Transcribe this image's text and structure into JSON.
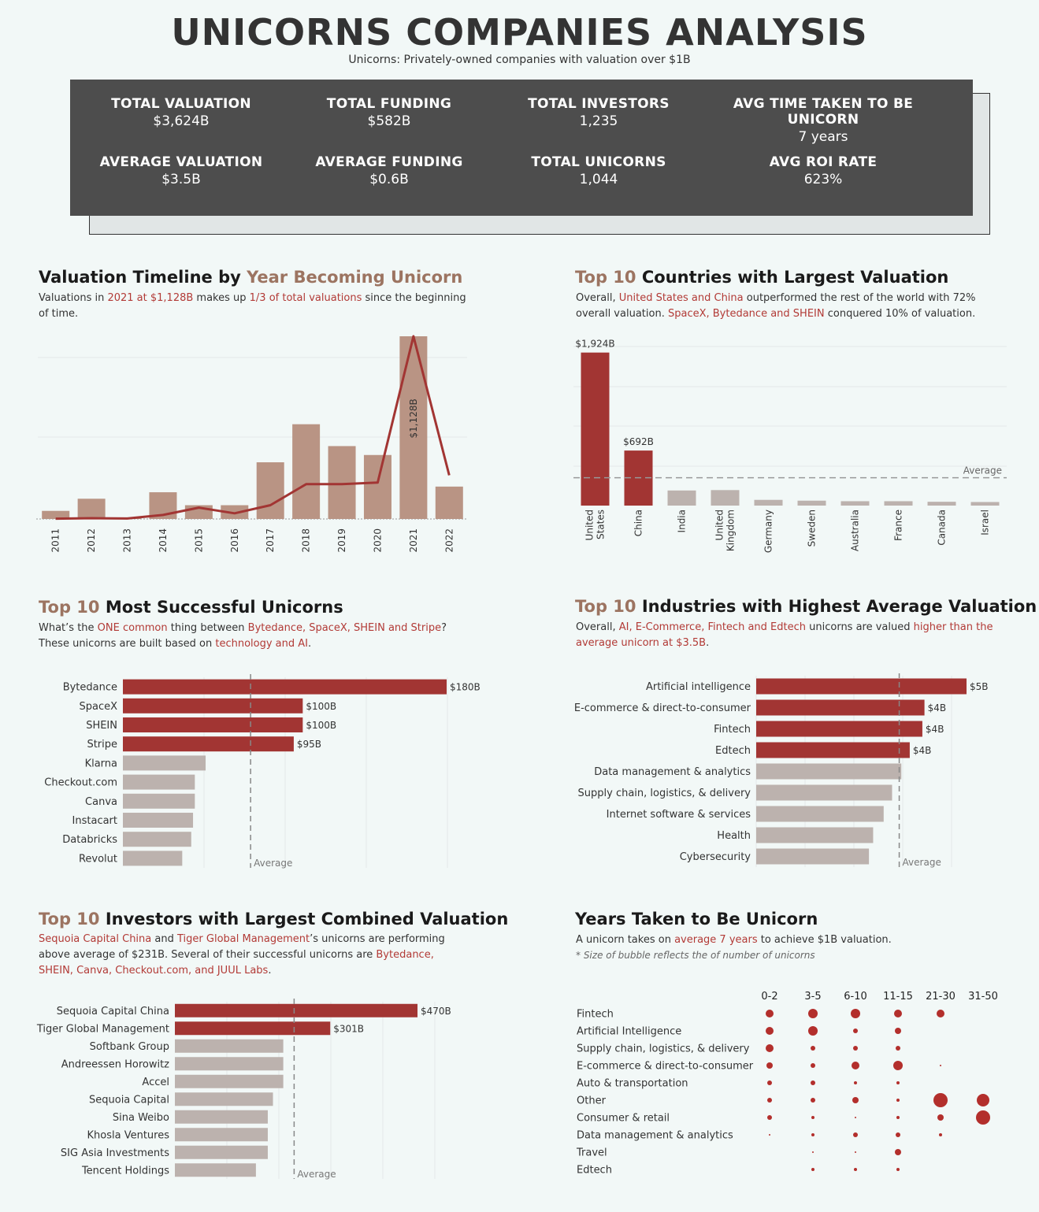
{
  "header": {
    "title": "UNICORNS COMPANIES ANALYSIS",
    "subtitle": "Unicorns: Privately-owned companies with valuation over $1B"
  },
  "kpis": [
    {
      "label": "TOTAL VALUATION",
      "value": "$3,624B"
    },
    {
      "label": "TOTAL FUNDING",
      "value": "$582B"
    },
    {
      "label": "TOTAL INVESTORS",
      "value": "1,235"
    },
    {
      "label": "AVG TIME TAKEN TO BE UNICORN",
      "value": "7 years"
    },
    {
      "label": "AVERAGE VALUATION",
      "value": "$3.5B"
    },
    {
      "label": "AVERAGE FUNDING",
      "value": "$0.6B"
    },
    {
      "label": "TOTAL UNICORNS",
      "value": "1,044"
    },
    {
      "label": "AVG ROI RATE",
      "value": "623%"
    }
  ],
  "colors": {
    "highlight": "#a23533",
    "bar_brown": "#b99484",
    "bar_grey": "#bcb2ae",
    "line": "#a23533",
    "title_accent": "#9c7461"
  },
  "sections": {
    "timeline": {
      "title_a": "Valuation Timeline by ",
      "title_b": "Year Becoming Unicorn",
      "desc": [
        {
          "t": "Valuations in "
        },
        {
          "t": "2021 at $1,128B",
          "hl": true
        },
        {
          "t": " makes up "
        },
        {
          "t": "1/3 of total valuations",
          "hl": true
        },
        {
          "t": " since the beginning of time."
        }
      ]
    },
    "countries": {
      "title_a": "Top 10",
      "title_b": " Countries with Largest Valuation",
      "desc": [
        {
          "t": "Overall, "
        },
        {
          "t": "United States and China",
          "hl": true
        },
        {
          "t": " outperformed the rest of the world with 72% overall valuation. "
        },
        {
          "t": "SpaceX, Bytedance and SHEIN",
          "hl": true
        },
        {
          "t": " conquered 10% of valuation."
        }
      ]
    },
    "unicorns": {
      "title_a": "Top 10",
      "title_b": " Most Successful Unicorns",
      "desc": [
        {
          "t": "What’s the "
        },
        {
          "t": "ONE common",
          "hl": true
        },
        {
          "t": " thing between "
        },
        {
          "t": "Bytedance, SpaceX, SHEIN and Stripe",
          "hl": true
        },
        {
          "t": "? These unicorns are built based on "
        },
        {
          "t": "technology and AI",
          "hl": true
        },
        {
          "t": "."
        }
      ]
    },
    "industries": {
      "title_a": "Top 10",
      "title_b": " Industries with Highest Average Valuation",
      "desc": [
        {
          "t": "Overall, "
        },
        {
          "t": "AI, E-Commerce, Fintech and Edtech",
          "hl": true
        },
        {
          "t": " unicorns are valued "
        },
        {
          "t": "higher than the average unicorn at $3.5B",
          "hl": true
        },
        {
          "t": "."
        }
      ]
    },
    "investors": {
      "title_a": "Top 10",
      "title_b": " Investors with Largest Combined Valuation",
      "desc": [
        {
          "t": "Sequoia Capital China",
          "hl": true
        },
        {
          "t": " and "
        },
        {
          "t": "Tiger Global Management",
          "hl": true
        },
        {
          "t": "’s unicorns are performing above average of $231B. Several of their successful unicorns are "
        },
        {
          "t": "Bytedance, SHEIN, Canva, Checkout.com, and JUUL Labs",
          "hl": true
        },
        {
          "t": "."
        }
      ]
    },
    "years": {
      "title_a": "",
      "title_b": "Years Taken to Be Unicorn",
      "desc": [
        {
          "t": "A unicorn takes on "
        },
        {
          "t": "average 7 years",
          "hl": true
        },
        {
          "t": " to achieve $1B valuation."
        }
      ],
      "note": "* Size of bubble reflects the of number of unicorns"
    }
  },
  "chart_data": [
    {
      "id": "timeline",
      "type": "bar",
      "categories": [
        "2011",
        "2012",
        "2013",
        "2014",
        "2015",
        "2016",
        "2017",
        "2018",
        "2019",
        "2020",
        "2021",
        "2022"
      ],
      "values": [
        50,
        125,
        5,
        165,
        85,
        85,
        350,
        585,
        450,
        395,
        1128,
        200
      ],
      "line_values": [
        2,
        5,
        3,
        25,
        70,
        35,
        85,
        215,
        215,
        225,
        1128,
        270
      ],
      "data_labels": {
        "2021": "$1,128B"
      },
      "ylim": [
        0,
        1128
      ]
    },
    {
      "id": "countries",
      "type": "bar",
      "categories": [
        "United States",
        "China",
        "India",
        "United Kingdom",
        "Germany",
        "Sweden",
        "Australia",
        "France",
        "Canada",
        "Israel"
      ],
      "values": [
        1924,
        692,
        190,
        195,
        72,
        62,
        55,
        55,
        48,
        45
      ],
      "data_labels": {
        "United States": "$1,924B",
        "China": "$692B"
      },
      "reference_line": {
        "label": "Average",
        "value": 350
      },
      "highlighted": [
        "United States",
        "China"
      ],
      "ylim": [
        0,
        2000
      ]
    },
    {
      "id": "unicorns",
      "type": "bar",
      "orientation": "horizontal",
      "categories": [
        "Bytedance",
        "SpaceX",
        "SHEIN",
        "Stripe",
        "Klarna",
        "Checkout.com",
        "Canva",
        "Instacart",
        "Databricks",
        "Revolut"
      ],
      "values": [
        180,
        100,
        100,
        95,
        46,
        40,
        40,
        39,
        38,
        33
      ],
      "data_labels": {
        "Bytedance": "$180B",
        "SpaceX": "$100B",
        "SHEIN": "$100B",
        "Stripe": "$95B"
      },
      "reference_line": {
        "label": "Average",
        "value": 71
      },
      "highlighted": [
        "Bytedance",
        "SpaceX",
        "SHEIN",
        "Stripe"
      ],
      "xlim": [
        0,
        200
      ]
    },
    {
      "id": "industries",
      "type": "bar",
      "orientation": "horizontal",
      "categories": [
        "Artificial intelligence",
        "E-commerce & direct-to-consumer",
        "Fintech",
        "Edtech",
        "Data management & analytics",
        "Supply chain, logistics, & delivery",
        "Internet software & services",
        "Health",
        "Cybersecurity"
      ],
      "values": [
        5.0,
        4.0,
        3.95,
        3.65,
        3.45,
        3.23,
        3.03,
        2.78,
        2.68
      ],
      "data_labels": {
        "Artificial intelligence": "$5B",
        "E-commerce & direct-to-consumer": "$4B",
        "Fintech": "$4B",
        "Edtech": "$4B"
      },
      "reference_line": {
        "label": "Average",
        "value": 3.4
      },
      "highlighted": [
        "Artificial intelligence",
        "E-commerce & direct-to-consumer",
        "Fintech",
        "Edtech"
      ],
      "xlim": [
        0,
        5.5
      ]
    },
    {
      "id": "investors",
      "type": "bar",
      "orientation": "horizontal",
      "categories": [
        "Sequoia Capital China",
        "Tiger Global Management",
        "Softbank Group",
        "Andreessen Horowitz",
        "Accel",
        "Sequoia Capital",
        "Sina Weibo",
        "Khosla Ventures",
        "SIG Asia Investments",
        "Tencent Holdings"
      ],
      "values": [
        470,
        301,
        210,
        210,
        210,
        190,
        180,
        180,
        180,
        157
      ],
      "data_labels": {
        "Sequoia Capital China": "$470B",
        "Tiger Global Management": "$301B"
      },
      "reference_line": {
        "label": "Average",
        "value": 231
      },
      "highlighted": [
        "Sequoia Capital China",
        "Tiger Global Management"
      ],
      "xlim": [
        0,
        550
      ]
    },
    {
      "id": "years",
      "type": "scatter",
      "columns": [
        "0-2",
        "3-5",
        "6-10",
        "11-15",
        "21-30",
        "31-50"
      ],
      "rows": [
        "Fintech",
        "Artificial Intelligence",
        "Supply chain, logistics, & delivery",
        "E-commerce & direct-to-consumer",
        "Auto & transportation",
        "Other",
        "Consumer & retail",
        "Data management & analytics",
        "Travel",
        "Edtech"
      ],
      "sizes": [
        [
          5,
          6,
          6,
          5,
          5,
          0
        ],
        [
          5,
          6,
          3,
          4,
          0,
          0
        ],
        [
          5,
          3,
          3,
          3,
          0,
          0
        ],
        [
          4,
          3,
          5,
          6,
          1,
          0
        ],
        [
          3,
          3,
          2,
          2,
          0,
          0
        ],
        [
          3,
          3,
          4,
          2,
          9,
          8
        ],
        [
          3,
          2,
          1,
          2,
          4,
          9
        ],
        [
          1,
          2,
          3,
          3,
          2,
          0
        ],
        [
          0,
          1,
          1,
          4,
          0,
          0
        ],
        [
          0,
          2,
          2,
          2,
          0,
          0
        ]
      ]
    }
  ]
}
